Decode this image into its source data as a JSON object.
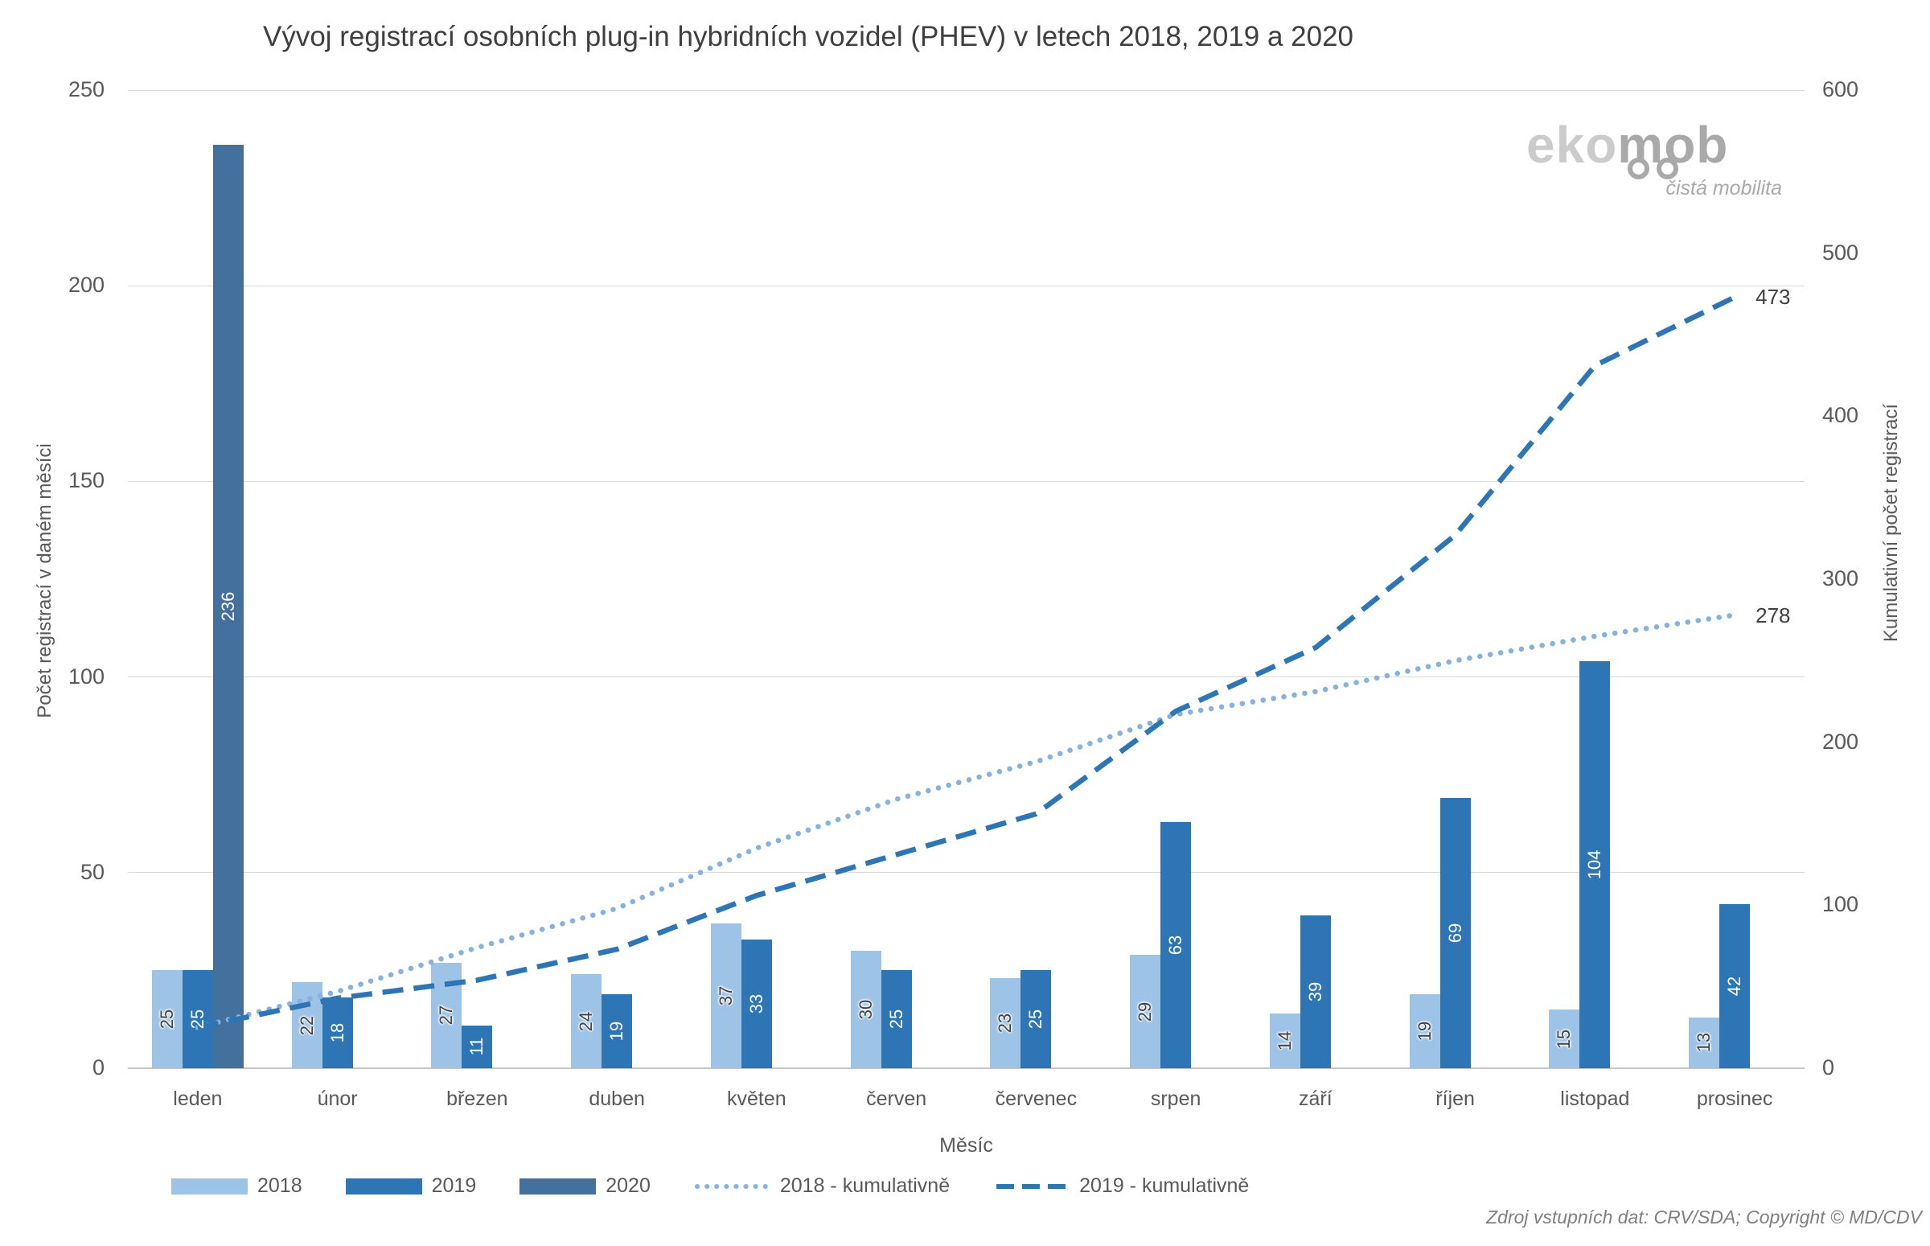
{
  "title": "Vývoj registrací osobních plug-in hybridních vozidel (PHEV) v letech 2018, 2019 a 2020",
  "axes": {
    "y_left_label": "Počet registrací v daném měsíci",
    "y_right_label": "Kumulativní počet registrací",
    "x_label": "Měsíc"
  },
  "logo": {
    "part1": "eko",
    "part2": "mob",
    "tagline": "čistá mobilita"
  },
  "source_note": "Zdroj vstupních dat: CRV/SDA; Copyright © MD/CDV",
  "colors": {
    "bar_2018": "#9DC3E6",
    "bar_2019": "#2E75B6",
    "bar_2020": "#44709D",
    "line_2018_cumulative": "#85B2DF",
    "line_2019_cumulative": "#2E75B6",
    "gridline": "#D9D9D9",
    "axis_line": "#C6C6C6",
    "text_dark": "#404040",
    "text_gray": "#595959"
  },
  "chart_data": {
    "type": "bar",
    "subtype": "clustered bars + cumulative lines, dual y-axis",
    "title": "Vývoj registrací osobních plug-in hybridních vozidel (PHEV) v letech 2018, 2019 a 2020",
    "xlabel": "Měsíc",
    "ylabel_left": "Počet registrací v daném měsíci",
    "ylabel_right": "Kumulativní počet registrací",
    "grid": true,
    "legend_position": "bottom",
    "categories": [
      "leden",
      "únor",
      "březen",
      "duben",
      "květen",
      "červen",
      "červenec",
      "srpen",
      "září",
      "říjen",
      "listopad",
      "prosinec"
    ],
    "y_left": {
      "min": 0,
      "max": 250,
      "ticks": [
        0,
        50,
        100,
        150,
        200,
        250
      ]
    },
    "y_right": {
      "min": 0,
      "max": 600,
      "ticks": [
        0,
        100,
        200,
        300,
        400,
        500,
        600
      ]
    },
    "bar_series": [
      {
        "name": "2018",
        "color": "#9DC3E6",
        "label_color": "#404040",
        "label_halo": true,
        "values": [
          25,
          22,
          27,
          24,
          37,
          30,
          23,
          29,
          14,
          19,
          15,
          13
        ]
      },
      {
        "name": "2019",
        "color": "#2E75B6",
        "label_color": "#FFFFFF",
        "label_halo": false,
        "values": [
          25,
          18,
          11,
          19,
          33,
          25,
          25,
          63,
          39,
          69,
          104,
          42
        ]
      },
      {
        "name": "2020",
        "color": "#44709D",
        "label_color": "#FFFFFF",
        "label_halo": false,
        "values": [
          236,
          0,
          0,
          0,
          0,
          0,
          0,
          0,
          0,
          0,
          0,
          0
        ]
      }
    ],
    "line_series": [
      {
        "name": "2018 - kumulativně",
        "style": "dotted",
        "color": "#85B2DF",
        "axis": "right",
        "values": [
          25,
          47,
          74,
          98,
          135,
          165,
          188,
          217,
          231,
          250,
          265,
          278
        ],
        "end_label": "278"
      },
      {
        "name": "2019 - kumulativně",
        "style": "dashed",
        "color": "#2E75B6",
        "axis": "right",
        "values": [
          25,
          43,
          54,
          73,
          106,
          131,
          156,
          219,
          258,
          327,
          431,
          473
        ],
        "end_label": "473"
      }
    ]
  }
}
